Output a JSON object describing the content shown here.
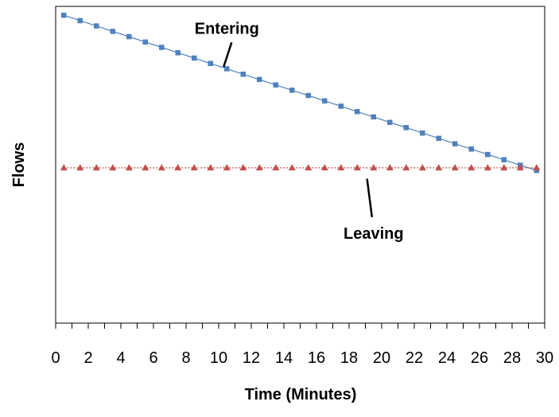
{
  "chart_data": {
    "type": "line",
    "title": "",
    "xlabel": "Time (Minutes)",
    "ylabel": "Flows",
    "xlim": [
      0,
      30
    ],
    "ylim": [
      0,
      2.04
    ],
    "x_ticks": [
      "0",
      "2",
      "4",
      "6",
      "8",
      "10",
      "12",
      "14",
      "16",
      "18",
      "20",
      "22",
      "24",
      "26",
      "28",
      "30"
    ],
    "y_tick_labels_shown": false,
    "grid": false,
    "legend": "none",
    "series": [
      {
        "name": "Entering",
        "color": "#4F81BD",
        "marker": "square",
        "line_style": "solid",
        "x": [
          0.5,
          1.5,
          2.5,
          3.5,
          4.5,
          5.5,
          6.5,
          7.5,
          8.5,
          9.5,
          10.5,
          11.5,
          12.5,
          13.5,
          14.5,
          15.5,
          16.5,
          17.5,
          18.5,
          19.5,
          20.5,
          21.5,
          22.5,
          23.5,
          24.5,
          25.5,
          26.5,
          27.5,
          28.5,
          29.5
        ],
        "values": [
          1.983,
          1.948,
          1.914,
          1.879,
          1.845,
          1.81,
          1.776,
          1.741,
          1.707,
          1.672,
          1.638,
          1.603,
          1.569,
          1.534,
          1.5,
          1.466,
          1.431,
          1.397,
          1.362,
          1.328,
          1.293,
          1.259,
          1.224,
          1.19,
          1.155,
          1.121,
          1.086,
          1.052,
          1.017,
          0.983
        ]
      },
      {
        "name": "Leaving",
        "color": "#C0504D",
        "marker": "triangle",
        "line_style": "dotted",
        "x": [
          0.5,
          1.5,
          2.5,
          3.5,
          4.5,
          5.5,
          6.5,
          7.5,
          8.5,
          9.5,
          10.5,
          11.5,
          12.5,
          13.5,
          14.5,
          15.5,
          16.5,
          17.5,
          18.5,
          19.5,
          20.5,
          21.5,
          22.5,
          23.5,
          24.5,
          25.5,
          26.5,
          27.5,
          28.5,
          29.5
        ],
        "values": [
          1,
          1,
          1,
          1,
          1,
          1,
          1,
          1,
          1,
          1,
          1,
          1,
          1,
          1,
          1,
          1,
          1,
          1,
          1,
          1,
          1,
          1,
          1,
          1,
          1,
          1,
          1,
          1,
          1,
          1
        ]
      }
    ],
    "annotations": [
      {
        "text": "Entering",
        "x": 10.5,
        "y": 1.9,
        "pointer_to": {
          "x": 10.3,
          "y": 1.65
        }
      },
      {
        "text": "Leaving",
        "x": 19.5,
        "y": 0.58,
        "pointer_to": {
          "x": 19.1,
          "y": 0.93
        }
      }
    ]
  }
}
